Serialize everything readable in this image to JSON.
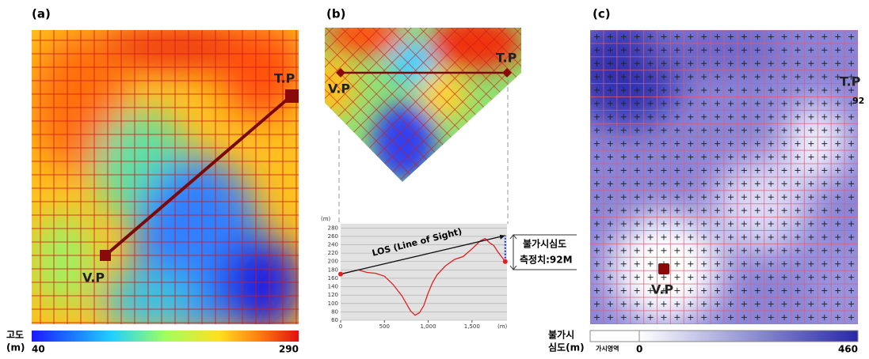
{
  "panels": [
    {
      "label": "(a)",
      "tp": "T.P",
      "vp": "V.P",
      "colorbar": {
        "title": "고도",
        "unit": "(m)",
        "min": 40,
        "max": 290
      }
    },
    {
      "label": "(b)",
      "tp": "T.P",
      "vp": "V.P",
      "profile": {
        "type": "line",
        "y_unit": "(m)",
        "x_unit": "(m)",
        "los": {
          "label": "LOS (Line of Sight)",
          "y": [
            170,
            262
          ]
        },
        "depth_label": "불가시심도",
        "depth_value": "측정치:92M",
        "x": [
          0,
          100,
          200,
          300,
          400,
          500,
          600,
          700,
          750,
          800,
          850,
          900,
          950,
          1000,
          1050,
          1100,
          1200,
          1300,
          1400,
          1500,
          1550,
          1600,
          1650,
          1700,
          1750,
          1800,
          1880
        ],
        "values": [
          170,
          175,
          180,
          174,
          172,
          165,
          145,
          118,
          100,
          82,
          72,
          78,
          95,
          125,
          150,
          168,
          190,
          205,
          212,
          230,
          240,
          250,
          255,
          245,
          238,
          222,
          200
        ],
        "color": "#e02020",
        "xlim": [
          0,
          1900
        ],
        "ylim": [
          60,
          290
        ],
        "yticks": [
          60,
          80,
          100,
          120,
          140,
          160,
          180,
          200,
          220,
          240,
          260,
          280
        ],
        "xticks": [
          0,
          500,
          {
            "value": 1000,
            "label": "1,000"
          },
          {
            "value": 1500,
            "label": "1,500"
          }
        ]
      }
    },
    {
      "label": "(c)",
      "tp": "T.P",
      "tp_depth": "92",
      "vp": "V.P",
      "colorbar": {
        "title": "불가시",
        "unit": "심도(m)",
        "visible": "가시영역",
        "min": 0,
        "max": 460
      }
    }
  ]
}
